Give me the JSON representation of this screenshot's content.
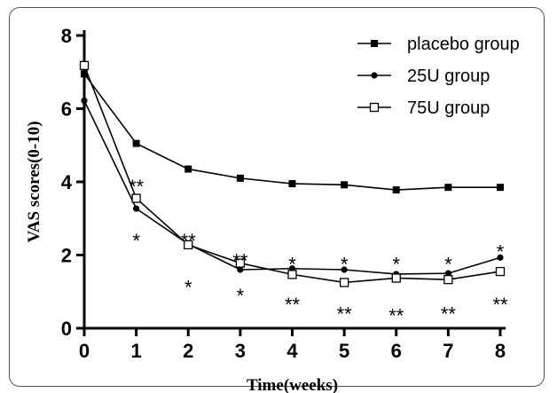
{
  "chart_data": {
    "type": "line",
    "xlabel": "Time(weeks)",
    "ylabel": "VAS scores(0-10)",
    "x": [
      0,
      1,
      2,
      3,
      4,
      5,
      6,
      7,
      8
    ],
    "xlim": [
      0,
      8
    ],
    "ylim": [
      0,
      8
    ],
    "yticks": [
      0,
      2,
      4,
      6,
      8
    ],
    "legend_position": "top-right",
    "series": [
      {
        "name": "placebo group",
        "marker": "filled-square",
        "values": [
          6.95,
          5.05,
          4.35,
          4.1,
          3.95,
          3.92,
          3.78,
          3.85,
          3.85
        ]
      },
      {
        "name": "25U group",
        "marker": "filled-circle",
        "values": [
          6.22,
          3.27,
          2.3,
          1.6,
          1.63,
          1.6,
          1.48,
          1.5,
          1.93
        ]
      },
      {
        "name": "75U group",
        "marker": "open-square",
        "values": [
          7.18,
          3.55,
          2.28,
          1.78,
          1.47,
          1.25,
          1.37,
          1.33,
          1.55
        ]
      }
    ],
    "annotations": [
      {
        "x": 1,
        "y": 3.98,
        "text": "**"
      },
      {
        "x": 1,
        "y": 2.5,
        "text": "*"
      },
      {
        "x": 2,
        "y": 2.5,
        "text": "**"
      },
      {
        "x": 2,
        "y": 1.23,
        "text": "*"
      },
      {
        "x": 3,
        "y": 1.95,
        "text": "**"
      },
      {
        "x": 3,
        "y": 1.0,
        "text": "*"
      },
      {
        "x": 4,
        "y": 1.85,
        "text": "*"
      },
      {
        "x": 4,
        "y": 0.75,
        "text": "**"
      },
      {
        "x": 5,
        "y": 1.85,
        "text": "*"
      },
      {
        "x": 5,
        "y": 0.5,
        "text": "**"
      },
      {
        "x": 6,
        "y": 1.85,
        "text": "*"
      },
      {
        "x": 6,
        "y": 0.45,
        "text": "**"
      },
      {
        "x": 7,
        "y": 1.85,
        "text": "*"
      },
      {
        "x": 7,
        "y": 0.5,
        "text": "**"
      },
      {
        "x": 8,
        "y": 2.2,
        "text": "*"
      },
      {
        "x": 8,
        "y": 0.75,
        "text": "**"
      }
    ]
  }
}
